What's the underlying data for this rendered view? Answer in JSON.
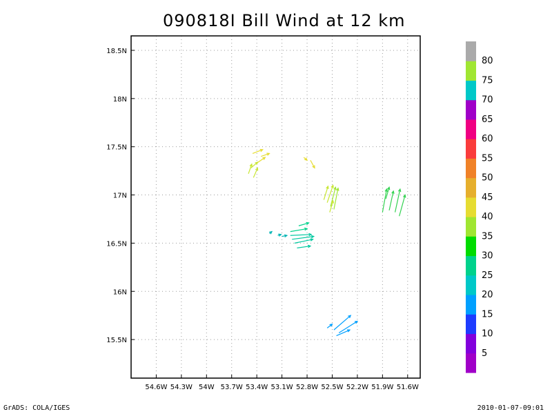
{
  "title": "090818I Bill Wind at 12 km",
  "footer": {
    "left": "GrADS: COLA/IGES",
    "right": "2010-01-07-09:01"
  },
  "chart_data": {
    "type": "vector_field",
    "title": "090818I Bill Wind at 12 km",
    "xlabel": "",
    "ylabel": "",
    "xlim": [
      -54.9,
      -51.45
    ],
    "ylim": [
      15.1,
      18.65
    ],
    "x_ticks": [
      {
        "value": -54.6,
        "label": "54.6W"
      },
      {
        "value": -54.3,
        "label": "54.3W"
      },
      {
        "value": -54.0,
        "label": "54W"
      },
      {
        "value": -53.7,
        "label": "53.7W"
      },
      {
        "value": -53.4,
        "label": "53.4W"
      },
      {
        "value": -53.1,
        "label": "53.1W"
      },
      {
        "value": -52.8,
        "label": "52.8W"
      },
      {
        "value": -52.5,
        "label": "52.5W"
      },
      {
        "value": -52.2,
        "label": "52.2W"
      },
      {
        "value": -51.9,
        "label": "51.9W"
      },
      {
        "value": -51.6,
        "label": "51.6W"
      }
    ],
    "y_ticks": [
      {
        "value": 15.5,
        "label": "15.5N"
      },
      {
        "value": 16.0,
        "label": "16N"
      },
      {
        "value": 16.5,
        "label": "16.5N"
      },
      {
        "value": 17.0,
        "label": "17N"
      },
      {
        "value": 17.5,
        "label": "17.5N"
      },
      {
        "value": 18.0,
        "label": "18N"
      },
      {
        "value": 18.5,
        "label": "18.5N"
      }
    ],
    "grid": true,
    "colorbar": {
      "colors": [
        "#a000c8",
        "#8200dc",
        "#1e3cff",
        "#00a0ff",
        "#00c8c8",
        "#00d28c",
        "#00dc00",
        "#a0e632",
        "#e6dc32",
        "#e6af2d",
        "#f08228",
        "#fa3c3c",
        "#f00082",
        "#a000c8",
        "#00c8c8",
        "#a0e632",
        "#aaaaaa"
      ],
      "labels": [
        "5",
        "10",
        "15",
        "20",
        "25",
        "30",
        "35",
        "40",
        "45",
        "50",
        "55",
        "60",
        "65",
        "70",
        "75",
        "80"
      ]
    },
    "vectors": [
      {
        "lon": -53.45,
        "lat": 17.43,
        "dlon": 0.12,
        "dlat": 0.04,
        "color": "#e6dc32"
      },
      {
        "lon": -53.35,
        "lat": 17.4,
        "dlon": 0.1,
        "dlat": 0.03,
        "color": "#e6dc32"
      },
      {
        "lon": -53.4,
        "lat": 17.33,
        "dlon": 0.1,
        "dlat": 0.06,
        "color": "#e6dc32"
      },
      {
        "lon": -53.47,
        "lat": 17.28,
        "dlon": 0.08,
        "dlat": 0.06,
        "color": "#c8e632"
      },
      {
        "lon": -53.5,
        "lat": 17.22,
        "dlon": 0.04,
        "dlat": 0.1,
        "color": "#c8e632"
      },
      {
        "lon": -53.44,
        "lat": 17.18,
        "dlon": 0.05,
        "dlat": 0.1,
        "color": "#c8e632"
      },
      {
        "lon": -52.84,
        "lat": 17.39,
        "dlon": 0.04,
        "dlat": -0.03,
        "color": "#e6dc32"
      },
      {
        "lon": -52.76,
        "lat": 17.36,
        "dlon": 0.05,
        "dlat": -0.08,
        "color": "#e6dc32"
      },
      {
        "lon": -52.6,
        "lat": 16.95,
        "dlon": 0.05,
        "dlat": 0.14,
        "color": "#c8e632"
      },
      {
        "lon": -52.56,
        "lat": 16.92,
        "dlon": 0.07,
        "dlat": 0.18,
        "color": "#c8e632"
      },
      {
        "lon": -52.52,
        "lat": 16.88,
        "dlon": 0.06,
        "dlat": 0.2,
        "color": "#a0e632"
      },
      {
        "lon": -52.48,
        "lat": 16.85,
        "dlon": 0.05,
        "dlat": 0.22,
        "color": "#a0e632"
      },
      {
        "lon": -52.53,
        "lat": 16.82,
        "dlon": 0.04,
        "dlat": 0.12,
        "color": "#c8e632"
      },
      {
        "lon": -51.9,
        "lat": 16.82,
        "dlon": 0.05,
        "dlat": 0.24,
        "color": "#32d250"
      },
      {
        "lon": -51.82,
        "lat": 16.84,
        "dlon": 0.05,
        "dlat": 0.2,
        "color": "#32d250"
      },
      {
        "lon": -51.75,
        "lat": 16.82,
        "dlon": 0.06,
        "dlat": 0.24,
        "color": "#32d250"
      },
      {
        "lon": -51.7,
        "lat": 16.78,
        "dlon": 0.07,
        "dlat": 0.22,
        "color": "#32d250"
      },
      {
        "lon": -51.86,
        "lat": 16.96,
        "dlon": 0.04,
        "dlat": 0.12,
        "color": "#32d250"
      },
      {
        "lon": -52.9,
        "lat": 16.68,
        "dlon": 0.12,
        "dlat": 0.03,
        "color": "#00d28c"
      },
      {
        "lon": -53.0,
        "lat": 16.62,
        "dlon": 0.2,
        "dlat": 0.03,
        "color": "#00d28c"
      },
      {
        "lon": -53.0,
        "lat": 16.58,
        "dlon": 0.25,
        "dlat": 0.01,
        "color": "#00c8a0"
      },
      {
        "lon": -52.98,
        "lat": 16.54,
        "dlon": 0.26,
        "dlat": 0.03,
        "color": "#00c8a0"
      },
      {
        "lon": -52.95,
        "lat": 16.5,
        "dlon": 0.22,
        "dlat": 0.04,
        "color": "#00c8a0"
      },
      {
        "lon": -52.92,
        "lat": 16.45,
        "dlon": 0.16,
        "dlat": 0.02,
        "color": "#00c8a0"
      },
      {
        "lon": -53.25,
        "lat": 16.6,
        "dlon": 0.03,
        "dlat": 0.02,
        "color": "#00b4b4"
      },
      {
        "lon": -53.15,
        "lat": 16.58,
        "dlon": 0.04,
        "dlat": 0.01,
        "color": "#00b4b4"
      },
      {
        "lon": -53.1,
        "lat": 16.57,
        "dlon": 0.06,
        "dlat": 0.01,
        "color": "#00b4b4"
      },
      {
        "lon": -52.56,
        "lat": 15.62,
        "dlon": 0.06,
        "dlat": 0.04,
        "color": "#00a0ff"
      },
      {
        "lon": -52.48,
        "lat": 15.6,
        "dlon": 0.2,
        "dlat": 0.15,
        "color": "#00a0ff"
      },
      {
        "lon": -52.42,
        "lat": 15.57,
        "dlon": 0.22,
        "dlat": 0.12,
        "color": "#00a0ff"
      },
      {
        "lon": -52.45,
        "lat": 15.54,
        "dlon": 0.16,
        "dlat": 0.06,
        "color": "#00a0ff"
      }
    ]
  }
}
